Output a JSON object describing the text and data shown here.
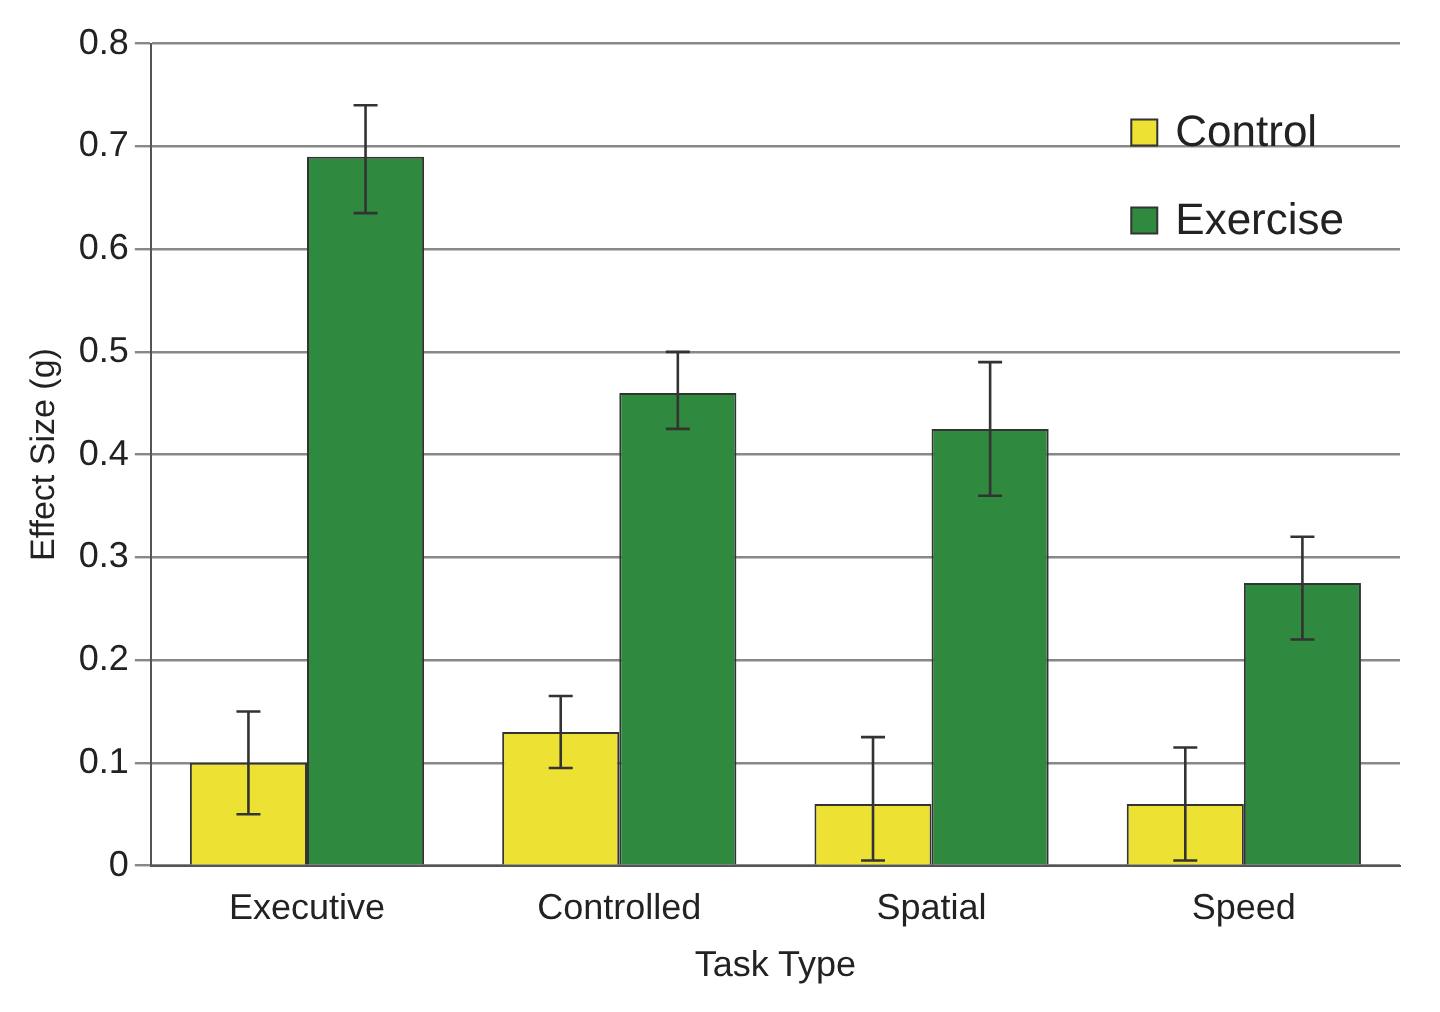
{
  "chart_data": {
    "type": "bar",
    "xlabel": "Task Type",
    "ylabel": "Effect Size (g)",
    "categories": [
      "Executive",
      "Controlled",
      "Spatial",
      "Speed"
    ],
    "series": [
      {
        "name": "Control",
        "color": "#ede234",
        "values": [
          0.1,
          0.13,
          0.06,
          0.06
        ],
        "errors": [
          [
            0.05,
            0.15
          ],
          [
            0.095,
            0.165
          ],
          [
            0.005,
            0.125
          ],
          [
            0.005,
            0.115
          ]
        ]
      },
      {
        "name": "Exercise",
        "color": "#2f8a3f",
        "values": [
          0.69,
          0.46,
          0.425,
          0.275
        ],
        "errors": [
          [
            0.635,
            0.74
          ],
          [
            0.425,
            0.5
          ],
          [
            0.36,
            0.49
          ],
          [
            0.22,
            0.32
          ]
        ]
      }
    ],
    "ylim": [
      0,
      0.8
    ],
    "yticks": [
      0,
      0.1,
      0.2,
      0.3,
      0.4,
      0.5,
      0.6,
      0.7,
      0.8
    ],
    "grid": "y",
    "legend": "top right"
  }
}
